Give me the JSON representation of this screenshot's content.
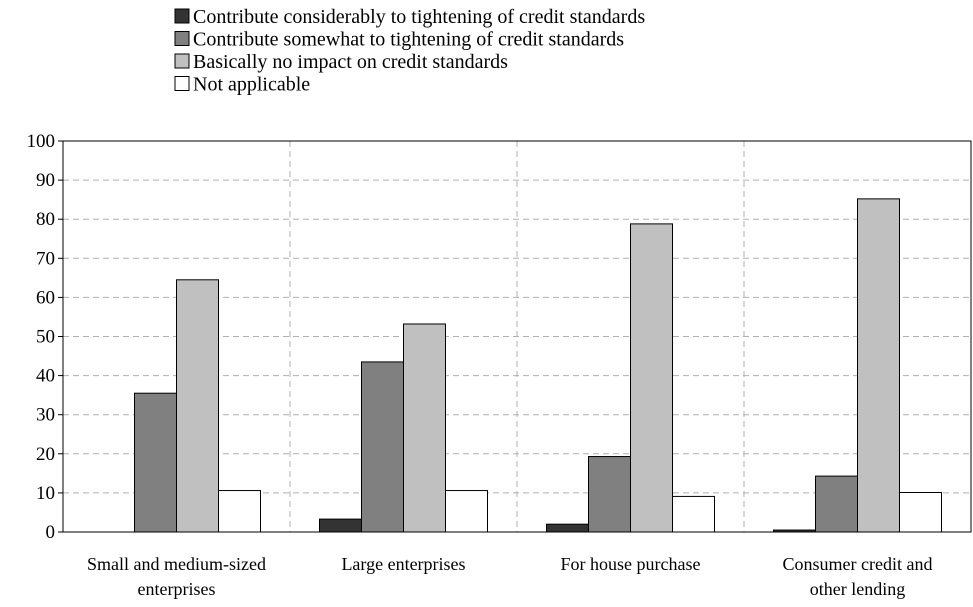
{
  "chart_data": {
    "type": "bar",
    "categories": [
      [
        "Small and medium-sized",
        "enterprises"
      ],
      [
        "Large enterprises"
      ],
      [
        "For house purchase"
      ],
      [
        "Consumer credit and",
        "other lending"
      ]
    ],
    "series": [
      {
        "name": "Contribute considerably to tightening of credit standards",
        "color": "#333333",
        "values": [
          0,
          3.3,
          2.0,
          0.5
        ]
      },
      {
        "name": "Contribute somewhat to tightening of credit standards",
        "color": "#808080",
        "values": [
          35.5,
          43.5,
          19.3,
          14.3
        ]
      },
      {
        "name": "Basically no impact on credit standards",
        "color": "#c0c0c0",
        "values": [
          64.5,
          53.2,
          78.8,
          85.2
        ]
      },
      {
        "name": "Not applicable",
        "color": "#ffffff",
        "values": [
          10.6,
          10.6,
          9.1,
          10.1
        ]
      }
    ],
    "ylim": [
      0,
      100
    ],
    "yticks": [
      0,
      10,
      20,
      30,
      40,
      50,
      60,
      70,
      80,
      90,
      100
    ],
    "grid": true,
    "legend_position": "top-center"
  }
}
